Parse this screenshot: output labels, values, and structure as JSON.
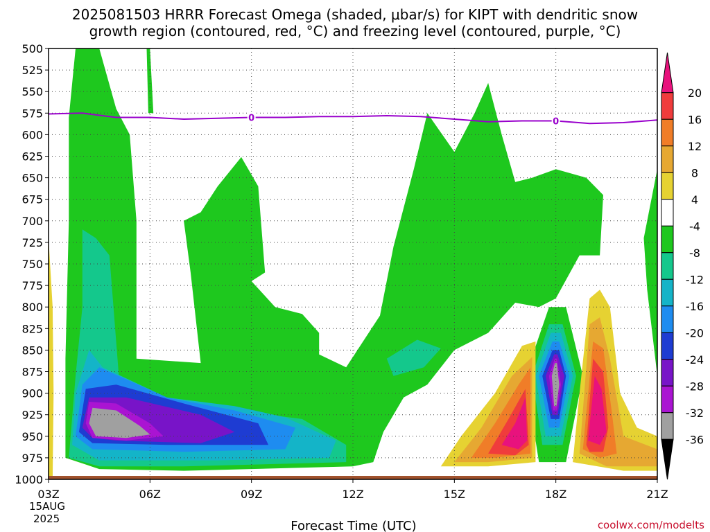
{
  "chart_data": {
    "type": "heatmap",
    "title_lines": [
      "2025081503 HRRR Forecast Omega (shaded, μbar/s) for KIPT with dendritic snow",
      "growth region (contoured, red, °C) and freezing level (contoured, purple, °C)"
    ],
    "xlabel": "Forecast Time (UTC)",
    "x_date_line1": "15AUG",
    "x_date_line2": "2025",
    "x_hours": [
      3,
      6,
      9,
      12,
      15,
      18,
      21
    ],
    "x_tick_labels": [
      "03Z",
      "06Z",
      "09Z",
      "12Z",
      "15Z",
      "18Z",
      "21Z"
    ],
    "y_levels_hpa": [
      500,
      525,
      550,
      575,
      600,
      625,
      650,
      675,
      700,
      725,
      750,
      775,
      800,
      825,
      850,
      875,
      900,
      925,
      950,
      975,
      1000
    ],
    "xlim": [
      3,
      21
    ],
    "ylim": [
      1000,
      500
    ],
    "grid": true,
    "colorbar": {
      "labels": [
        "20",
        "16",
        "12",
        "8",
        "4",
        "-4",
        "-8",
        "-12",
        "-16",
        "-20",
        "-24",
        "-28",
        "-32",
        "-36"
      ],
      "colors": [
        "#e8127d",
        "#f03c3c",
        "#f07d28",
        "#e6a832",
        "#e6d232",
        "#ffffff",
        "#1ec81e",
        "#14c88c",
        "#14b4c8",
        "#1e8cf0",
        "#1e3cd2",
        "#7814c8",
        "#aa14d2",
        "#a0a0a0",
        "#000000"
      ]
    },
    "freezing_level": {
      "label": "0",
      "color": "#9900cc",
      "points": [
        [
          3,
          576
        ],
        [
          4,
          575
        ],
        [
          5,
          580
        ],
        [
          6,
          580
        ],
        [
          7,
          582
        ],
        [
          8,
          581
        ],
        [
          9,
          580
        ],
        [
          10,
          580
        ],
        [
          11,
          579
        ],
        [
          12,
          579
        ],
        [
          13,
          578
        ],
        [
          14,
          579
        ],
        [
          15,
          582
        ],
        [
          16,
          585
        ],
        [
          17,
          584
        ],
        [
          18,
          584
        ],
        [
          19,
          587
        ],
        [
          20,
          586
        ],
        [
          21,
          583
        ]
      ]
    },
    "surface_color": "#a0522d",
    "regions": [
      {
        "level": "-8",
        "points": [
          [
            3.8,
            500
          ],
          [
            4.5,
            500
          ],
          [
            5.0,
            570
          ],
          [
            5.4,
            600
          ],
          [
            5.6,
            700
          ],
          [
            5.6,
            860
          ],
          [
            7.5,
            865
          ],
          [
            7.2,
            760
          ],
          [
            7.0,
            700
          ],
          [
            7.5,
            690
          ],
          [
            8.0,
            660
          ],
          [
            8.7,
            626
          ],
          [
            9.2,
            660
          ],
          [
            9.4,
            760
          ],
          [
            9.0,
            770
          ],
          [
            9.7,
            800
          ],
          [
            10.5,
            808
          ],
          [
            11.0,
            830
          ],
          [
            11.0,
            855
          ],
          [
            11.8,
            870
          ],
          [
            12.8,
            810
          ],
          [
            13.2,
            730
          ],
          [
            13.8,
            640
          ],
          [
            14.2,
            575
          ],
          [
            15.0,
            620
          ],
          [
            15.6,
            575
          ],
          [
            16.0,
            540
          ],
          [
            16.4,
            600
          ],
          [
            16.8,
            655
          ],
          [
            17.3,
            650
          ],
          [
            18.0,
            640
          ],
          [
            18.9,
            650
          ],
          [
            19.4,
            670
          ],
          [
            19.3,
            740
          ],
          [
            18.7,
            740
          ],
          [
            18.0,
            790
          ],
          [
            17.5,
            800
          ],
          [
            16.8,
            795
          ],
          [
            16.0,
            830
          ],
          [
            15.0,
            850
          ],
          [
            14.2,
            890
          ],
          [
            13.5,
            905
          ],
          [
            12.9,
            945
          ],
          [
            12.6,
            980
          ],
          [
            12.0,
            985
          ],
          [
            7.0,
            990
          ],
          [
            4.5,
            988
          ],
          [
            3.5,
            975
          ],
          [
            3.5,
            860
          ],
          [
            3.6,
            700
          ],
          [
            3.6,
            580
          ]
        ]
      },
      {
        "level": "-8",
        "points": [
          [
            5.9,
            500
          ],
          [
            6.0,
            500
          ],
          [
            6.1,
            575
          ],
          [
            5.95,
            575
          ]
        ]
      },
      {
        "level": "-8",
        "points": [
          [
            20.6,
            720
          ],
          [
            21.0,
            640
          ],
          [
            21.0,
            880
          ],
          [
            20.7,
            780
          ]
        ]
      },
      {
        "level": "-8",
        "points": [
          [
            17.1,
            880
          ],
          [
            17.8,
            800
          ],
          [
            18.3,
            800
          ],
          [
            18.8,
            880
          ],
          [
            18.3,
            980
          ],
          [
            17.5,
            980
          ]
        ]
      },
      {
        "level": "-12",
        "points": [
          [
            3.6,
            975
          ],
          [
            3.8,
            880
          ],
          [
            4.0,
            800
          ],
          [
            4.0,
            710
          ],
          [
            4.4,
            720
          ],
          [
            4.8,
            740
          ],
          [
            5.1,
            890
          ],
          [
            6.5,
            910
          ],
          [
            8.5,
            920
          ],
          [
            10.5,
            930
          ],
          [
            11.8,
            960
          ],
          [
            11.8,
            980
          ],
          [
            7.0,
            985
          ],
          [
            4.5,
            985
          ]
        ]
      },
      {
        "level": "-12",
        "points": [
          [
            13.0,
            860
          ],
          [
            13.9,
            838
          ],
          [
            14.6,
            848
          ],
          [
            14.1,
            870
          ],
          [
            13.2,
            880
          ]
        ]
      },
      {
        "level": "-12",
        "points": [
          [
            17.3,
            880
          ],
          [
            17.8,
            820
          ],
          [
            18.2,
            820
          ],
          [
            18.6,
            880
          ],
          [
            18.2,
            960
          ],
          [
            17.6,
            960
          ]
        ]
      },
      {
        "level": "-16",
        "points": [
          [
            3.7,
            960
          ],
          [
            3.8,
            900
          ],
          [
            4.2,
            850
          ],
          [
            4.6,
            870
          ],
          [
            6.5,
            905
          ],
          [
            8.5,
            915
          ],
          [
            10.0,
            928
          ],
          [
            11.5,
            955
          ],
          [
            11.3,
            975
          ],
          [
            8.0,
            978
          ],
          [
            4.5,
            978
          ]
        ]
      },
      {
        "level": "-16",
        "points": [
          [
            17.4,
            880
          ],
          [
            17.85,
            830
          ],
          [
            18.15,
            830
          ],
          [
            18.5,
            880
          ],
          [
            18.15,
            950
          ],
          [
            17.7,
            950
          ]
        ]
      },
      {
        "level": "-20",
        "points": [
          [
            3.8,
            950
          ],
          [
            4.0,
            890
          ],
          [
            4.5,
            870
          ],
          [
            6.5,
            905
          ],
          [
            8.5,
            920
          ],
          [
            10.3,
            940
          ],
          [
            10.0,
            965
          ],
          [
            7.0,
            968
          ],
          [
            4.3,
            965
          ]
        ]
      },
      {
        "level": "-20",
        "points": [
          [
            17.5,
            880
          ],
          [
            17.9,
            840
          ],
          [
            18.1,
            840
          ],
          [
            18.4,
            880
          ],
          [
            18.1,
            940
          ],
          [
            17.8,
            940
          ]
        ]
      },
      {
        "level": "-24",
        "points": [
          [
            3.9,
            945
          ],
          [
            4.1,
            895
          ],
          [
            5.0,
            890
          ],
          [
            7.0,
            912
          ],
          [
            9.2,
            935
          ],
          [
            9.5,
            960
          ],
          [
            6.5,
            960
          ],
          [
            4.3,
            958
          ]
        ]
      },
      {
        "level": "-24",
        "points": [
          [
            17.6,
            880
          ],
          [
            17.9,
            850
          ],
          [
            18.1,
            850
          ],
          [
            18.3,
            880
          ],
          [
            18.1,
            930
          ],
          [
            17.85,
            930
          ]
        ]
      },
      {
        "level": "-28",
        "points": [
          [
            4.0,
            940
          ],
          [
            4.2,
            905
          ],
          [
            5.3,
            905
          ],
          [
            7.5,
            925
          ],
          [
            8.5,
            945
          ],
          [
            7.5,
            958
          ],
          [
            5.0,
            955
          ],
          [
            4.3,
            952
          ]
        ]
      },
      {
        "level": "-28",
        "points": [
          [
            17.7,
            880
          ],
          [
            17.95,
            855
          ],
          [
            18.05,
            855
          ],
          [
            18.25,
            880
          ],
          [
            18.05,
            925
          ],
          [
            17.9,
            925
          ]
        ]
      },
      {
        "level": "-32",
        "points": [
          [
            4.1,
            935
          ],
          [
            4.2,
            910
          ],
          [
            5.0,
            912
          ],
          [
            6.0,
            935
          ],
          [
            6.4,
            950
          ],
          [
            5.3,
            955
          ],
          [
            4.3,
            952
          ]
        ]
      },
      {
        "level": "-32",
        "points": [
          [
            17.8,
            880
          ],
          [
            17.97,
            860
          ],
          [
            18.03,
            860
          ],
          [
            18.15,
            890
          ],
          [
            18.03,
            920
          ],
          [
            17.92,
            920
          ]
        ]
      },
      {
        "level": "-36",
        "points": [
          [
            4.2,
            935
          ],
          [
            4.3,
            917
          ],
          [
            5.0,
            920
          ],
          [
            5.7,
            938
          ],
          [
            6.0,
            948
          ],
          [
            5.3,
            952
          ],
          [
            4.4,
            950
          ]
        ]
      },
      {
        "level": "-36",
        "points": [
          [
            17.88,
            880
          ],
          [
            17.97,
            865
          ],
          [
            18.03,
            865
          ],
          [
            18.1,
            890
          ],
          [
            18.02,
            915
          ],
          [
            17.95,
            915
          ]
        ]
      },
      {
        "level": "4",
        "points": [
          [
            3.0,
            720
          ],
          [
            3.12,
            800
          ],
          [
            3.15,
            900
          ],
          [
            3.12,
            1000
          ],
          [
            3.0,
            1000
          ]
        ]
      },
      {
        "level": "4",
        "points": [
          [
            14.6,
            985
          ],
          [
            15.2,
            950
          ],
          [
            16.2,
            900
          ],
          [
            17.0,
            845
          ],
          [
            17.4,
            840
          ],
          [
            17.4,
            980
          ],
          [
            16.0,
            985
          ]
        ]
      },
      {
        "level": "4",
        "points": [
          [
            18.5,
            980
          ],
          [
            18.7,
            900
          ],
          [
            19.0,
            790
          ],
          [
            19.3,
            780
          ],
          [
            19.6,
            800
          ],
          [
            19.9,
            900
          ],
          [
            20.4,
            940
          ],
          [
            21.0,
            950
          ],
          [
            21.0,
            990
          ],
          [
            20.0,
            990
          ]
        ]
      },
      {
        "level": "8",
        "points": [
          [
            15.0,
            980
          ],
          [
            15.8,
            940
          ],
          [
            16.7,
            880
          ],
          [
            17.3,
            858
          ],
          [
            17.3,
            975
          ],
          [
            16.0,
            980
          ]
        ]
      },
      {
        "level": "8",
        "points": [
          [
            18.7,
            970
          ],
          [
            19.0,
            820
          ],
          [
            19.3,
            812
          ],
          [
            19.6,
            860
          ],
          [
            20.0,
            950
          ],
          [
            21.0,
            965
          ],
          [
            21.0,
            985
          ],
          [
            19.5,
            985
          ]
        ]
      },
      {
        "level": "12",
        "points": [
          [
            15.5,
            975
          ],
          [
            16.2,
            935
          ],
          [
            16.9,
            890
          ],
          [
            17.25,
            870
          ],
          [
            17.25,
            970
          ],
          [
            16.2,
            975
          ]
        ]
      },
      {
        "level": "12",
        "points": [
          [
            18.8,
            965
          ],
          [
            19.1,
            840
          ],
          [
            19.4,
            848
          ],
          [
            19.65,
            920
          ],
          [
            19.8,
            970
          ],
          [
            19.3,
            975
          ]
        ]
      },
      {
        "level": "16",
        "points": [
          [
            16.0,
            970
          ],
          [
            16.6,
            930
          ],
          [
            17.1,
            895
          ],
          [
            17.2,
            960
          ],
          [
            16.8,
            972
          ]
        ]
      },
      {
        "level": "16",
        "points": [
          [
            18.9,
            960
          ],
          [
            19.1,
            860
          ],
          [
            19.4,
            875
          ],
          [
            19.55,
            940
          ],
          [
            19.4,
            968
          ],
          [
            19.0,
            968
          ]
        ]
      },
      {
        "level": "20",
        "points": [
          [
            16.4,
            960
          ],
          [
            16.8,
            935
          ],
          [
            17.1,
            905
          ],
          [
            17.15,
            955
          ],
          [
            16.9,
            965
          ]
        ]
      },
      {
        "level": "20",
        "points": [
          [
            18.95,
            955
          ],
          [
            19.15,
            880
          ],
          [
            19.35,
            895
          ],
          [
            19.5,
            945
          ],
          [
            19.3,
            960
          ]
        ]
      }
    ]
  },
  "footer": {
    "credit": "coolwx.com/modelts"
  }
}
